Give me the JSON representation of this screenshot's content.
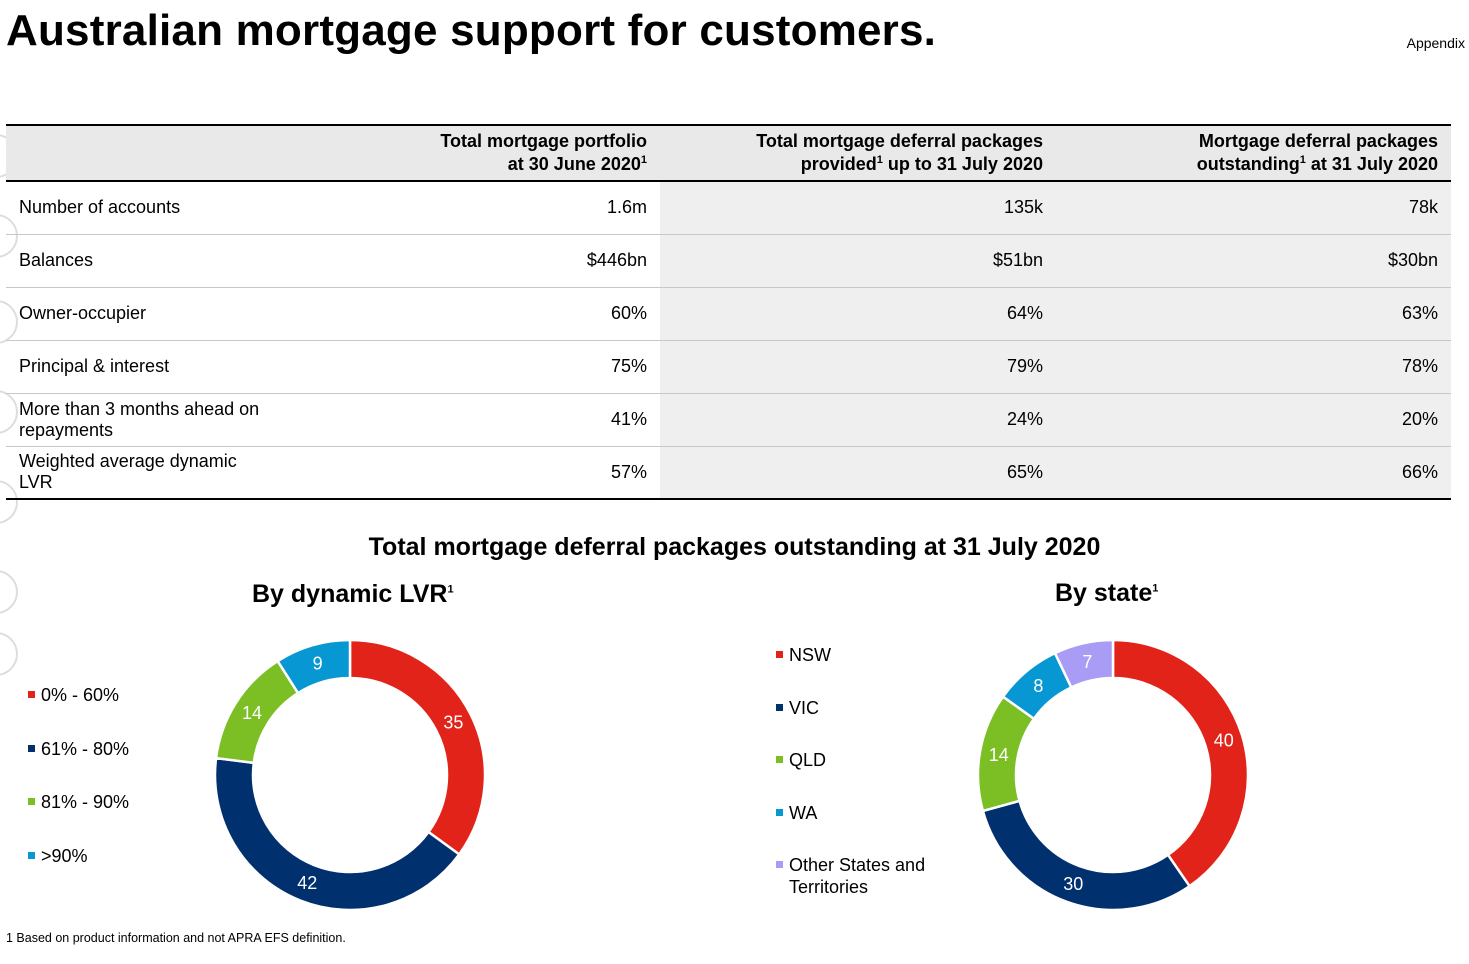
{
  "title": "Australian mortgage support for customers.",
  "section_tag": "Appendix",
  "table": {
    "headers": [
      {
        "lines": [
          "Total mortgage portfolio",
          "at 30 June 2020"
        ],
        "fn": "1",
        "fn_after_line2": ""
      },
      {
        "lines": [
          "Total mortgage deferral packages",
          "provided"
        ],
        "fn": "1",
        "fn_after_line2": " up to 31 July 2020"
      },
      {
        "lines": [
          "Mortgage deferral packages",
          "outstanding"
        ],
        "fn": "1",
        "fn_after_line2": " at 31 July 2020"
      }
    ],
    "rows": [
      {
        "label": "Number of accounts",
        "values": [
          "1.6m",
          "135k",
          "78k"
        ]
      },
      {
        "label": "Balances",
        "values": [
          "$446bn",
          "$51bn",
          "$30bn"
        ]
      },
      {
        "label": "Owner-occupier",
        "values": [
          "60%",
          "64%",
          "63%"
        ]
      },
      {
        "label": "Principal & interest",
        "values": [
          "75%",
          "79%",
          "78%"
        ]
      },
      {
        "label": "More than 3 months ahead on repayments",
        "values": [
          "41%",
          "24%",
          "20%"
        ]
      },
      {
        "label": "Weighted average dynamic LVR",
        "values": [
          "57%",
          "65%",
          "66%"
        ]
      }
    ]
  },
  "charts_title": "Total mortgage deferral packages outstanding at 31 July 2020",
  "chart_data": [
    {
      "type": "pie",
      "variant": "donut",
      "title": "By dynamic LVR",
      "title_fn": "1",
      "categories": [
        "0% - 60%",
        "61% - 80%",
        "81% - 90%",
        ">90%"
      ],
      "values": [
        35,
        42,
        14,
        9
      ],
      "colors": [
        "#e2231a",
        "#00306e",
        "#7bbf24",
        "#0797d2"
      ],
      "legend": "left"
    },
    {
      "type": "pie",
      "variant": "donut",
      "title": "By state",
      "title_fn": "1",
      "categories": [
        "NSW",
        "VIC",
        "QLD",
        "WA",
        "Other States and Territories"
      ],
      "legend_lines": [
        [
          "NSW"
        ],
        [
          "VIC"
        ],
        [
          "QLD"
        ],
        [
          "WA"
        ],
        [
          "Other States and",
          "Territories"
        ]
      ],
      "values": [
        40,
        30,
        14,
        8,
        7
      ],
      "colors": [
        "#e2231a",
        "#00306e",
        "#7bbf24",
        "#0797d2",
        "#a89cf4"
      ],
      "legend": "left"
    }
  ],
  "footnote": "1 Based on product information and not APRA EFS definition."
}
